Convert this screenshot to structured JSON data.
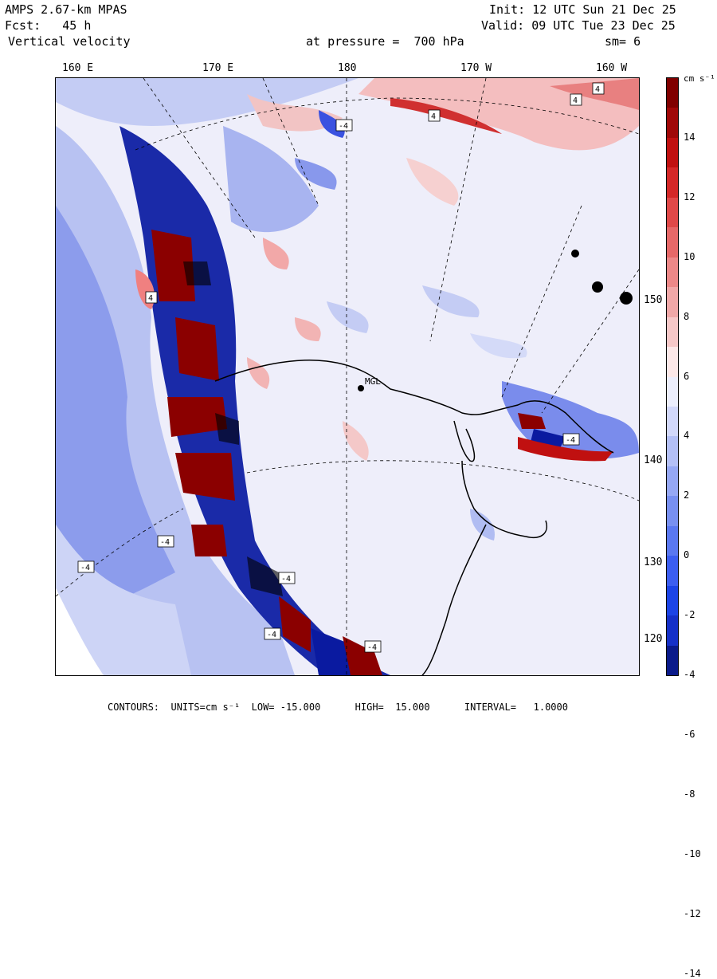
{
  "header": {
    "model": "AMPS 2.67-km MPAS",
    "forecast": "Fcst:   45 h",
    "field": "Vertical velocity",
    "init": "Init: 12 UTC Sun 21 Dec 25",
    "valid": "Valid: 09 UTC Tue 23 Dec 25",
    "pressure": "at pressure =  700 hPa",
    "smoothing": "sm= 6"
  },
  "lon_labels": [
    "160 E",
    "170 E",
    "180",
    "170 W",
    "160 W"
  ],
  "lat_labels": [
    "150 W",
    "140 W",
    "130 W",
    "120 W"
  ],
  "colorbar": {
    "units": "cm s⁻¹",
    "ticks": [
      "14",
      "12",
      "10",
      "8",
      "6",
      "4",
      "2",
      "0",
      "-2",
      "-4",
      "-6",
      "-8",
      "-10",
      "-12",
      "-14"
    ],
    "colors": [
      "#0a1a8a",
      "#1530c8",
      "#1c44e6",
      "#3c5ef0",
      "#5a78f0",
      "#7890f0",
      "#96a8f4",
      "#b4c0f6",
      "#d2d8fa",
      "#eceefc",
      "#fce8e8",
      "#f6c8c8",
      "#f0a8a8",
      "#ec8888",
      "#e66868",
      "#e04848",
      "#d42828",
      "#c01010",
      "#a00808",
      "#800000"
    ]
  },
  "station": "MGL",
  "map_marks": [
    "4",
    "-4"
  ],
  "footer": "CONTOURS:  UNITS=cm s⁻¹  LOW= -15.000      HIGH=  15.000      INTERVAL=   1.0000",
  "colors": {
    "strong_up": "#8b0000",
    "up": "#f0a0a0",
    "down": "#7080e8",
    "strong_down": "#0a1aa0",
    "neutral": "#eeeefa"
  }
}
